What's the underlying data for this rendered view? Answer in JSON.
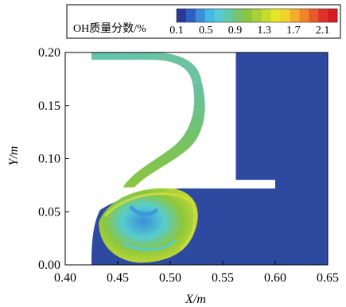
{
  "chart_data": {
    "type": "heatmap",
    "title": "",
    "xlabel": "X/m",
    "ylabel": "Y/m",
    "xlim": [
      0.4,
      0.65
    ],
    "ylim": [
      0.0,
      0.2
    ],
    "x_ticks": [
      0.4,
      0.45,
      0.5,
      0.55,
      0.6,
      0.65
    ],
    "x_tick_labels": [
      "0.40",
      "0.45",
      "0.50",
      "0.55",
      "0.60",
      "0.65"
    ],
    "y_ticks": [
      0.0,
      0.05,
      0.1,
      0.15,
      0.2
    ],
    "y_tick_labels": [
      "0.00",
      "0.05",
      "0.10",
      "0.15",
      "0.20"
    ],
    "colorbar": {
      "label": "OH质量分数/%",
      "min": 0.1,
      "max": 2.3,
      "tick_values": [
        0.1,
        0.5,
        0.9,
        1.3,
        1.7,
        2.1
      ],
      "tick_labels": [
        "0.1",
        "0.5",
        "0.9",
        "1.3",
        "1.7",
        "2.1"
      ],
      "colors": [
        "#2b3a98",
        "#2f5fc0",
        "#3b8fd8",
        "#45b8e6",
        "#56ccd0",
        "#62c9a8",
        "#78c46a",
        "#8cc63e",
        "#a8d03a",
        "#c8dc30",
        "#e6e628",
        "#f2d22a",
        "#f4ac2a",
        "#f0842a",
        "#e85a2a",
        "#e03028",
        "#d41c22"
      ]
    },
    "regions": {
      "background_fill": "#2e4aa0",
      "jet_fill": "#6cc466",
      "inlet_fill": "#68c0a6",
      "cavity_highlight": "#d2de3e"
    }
  }
}
